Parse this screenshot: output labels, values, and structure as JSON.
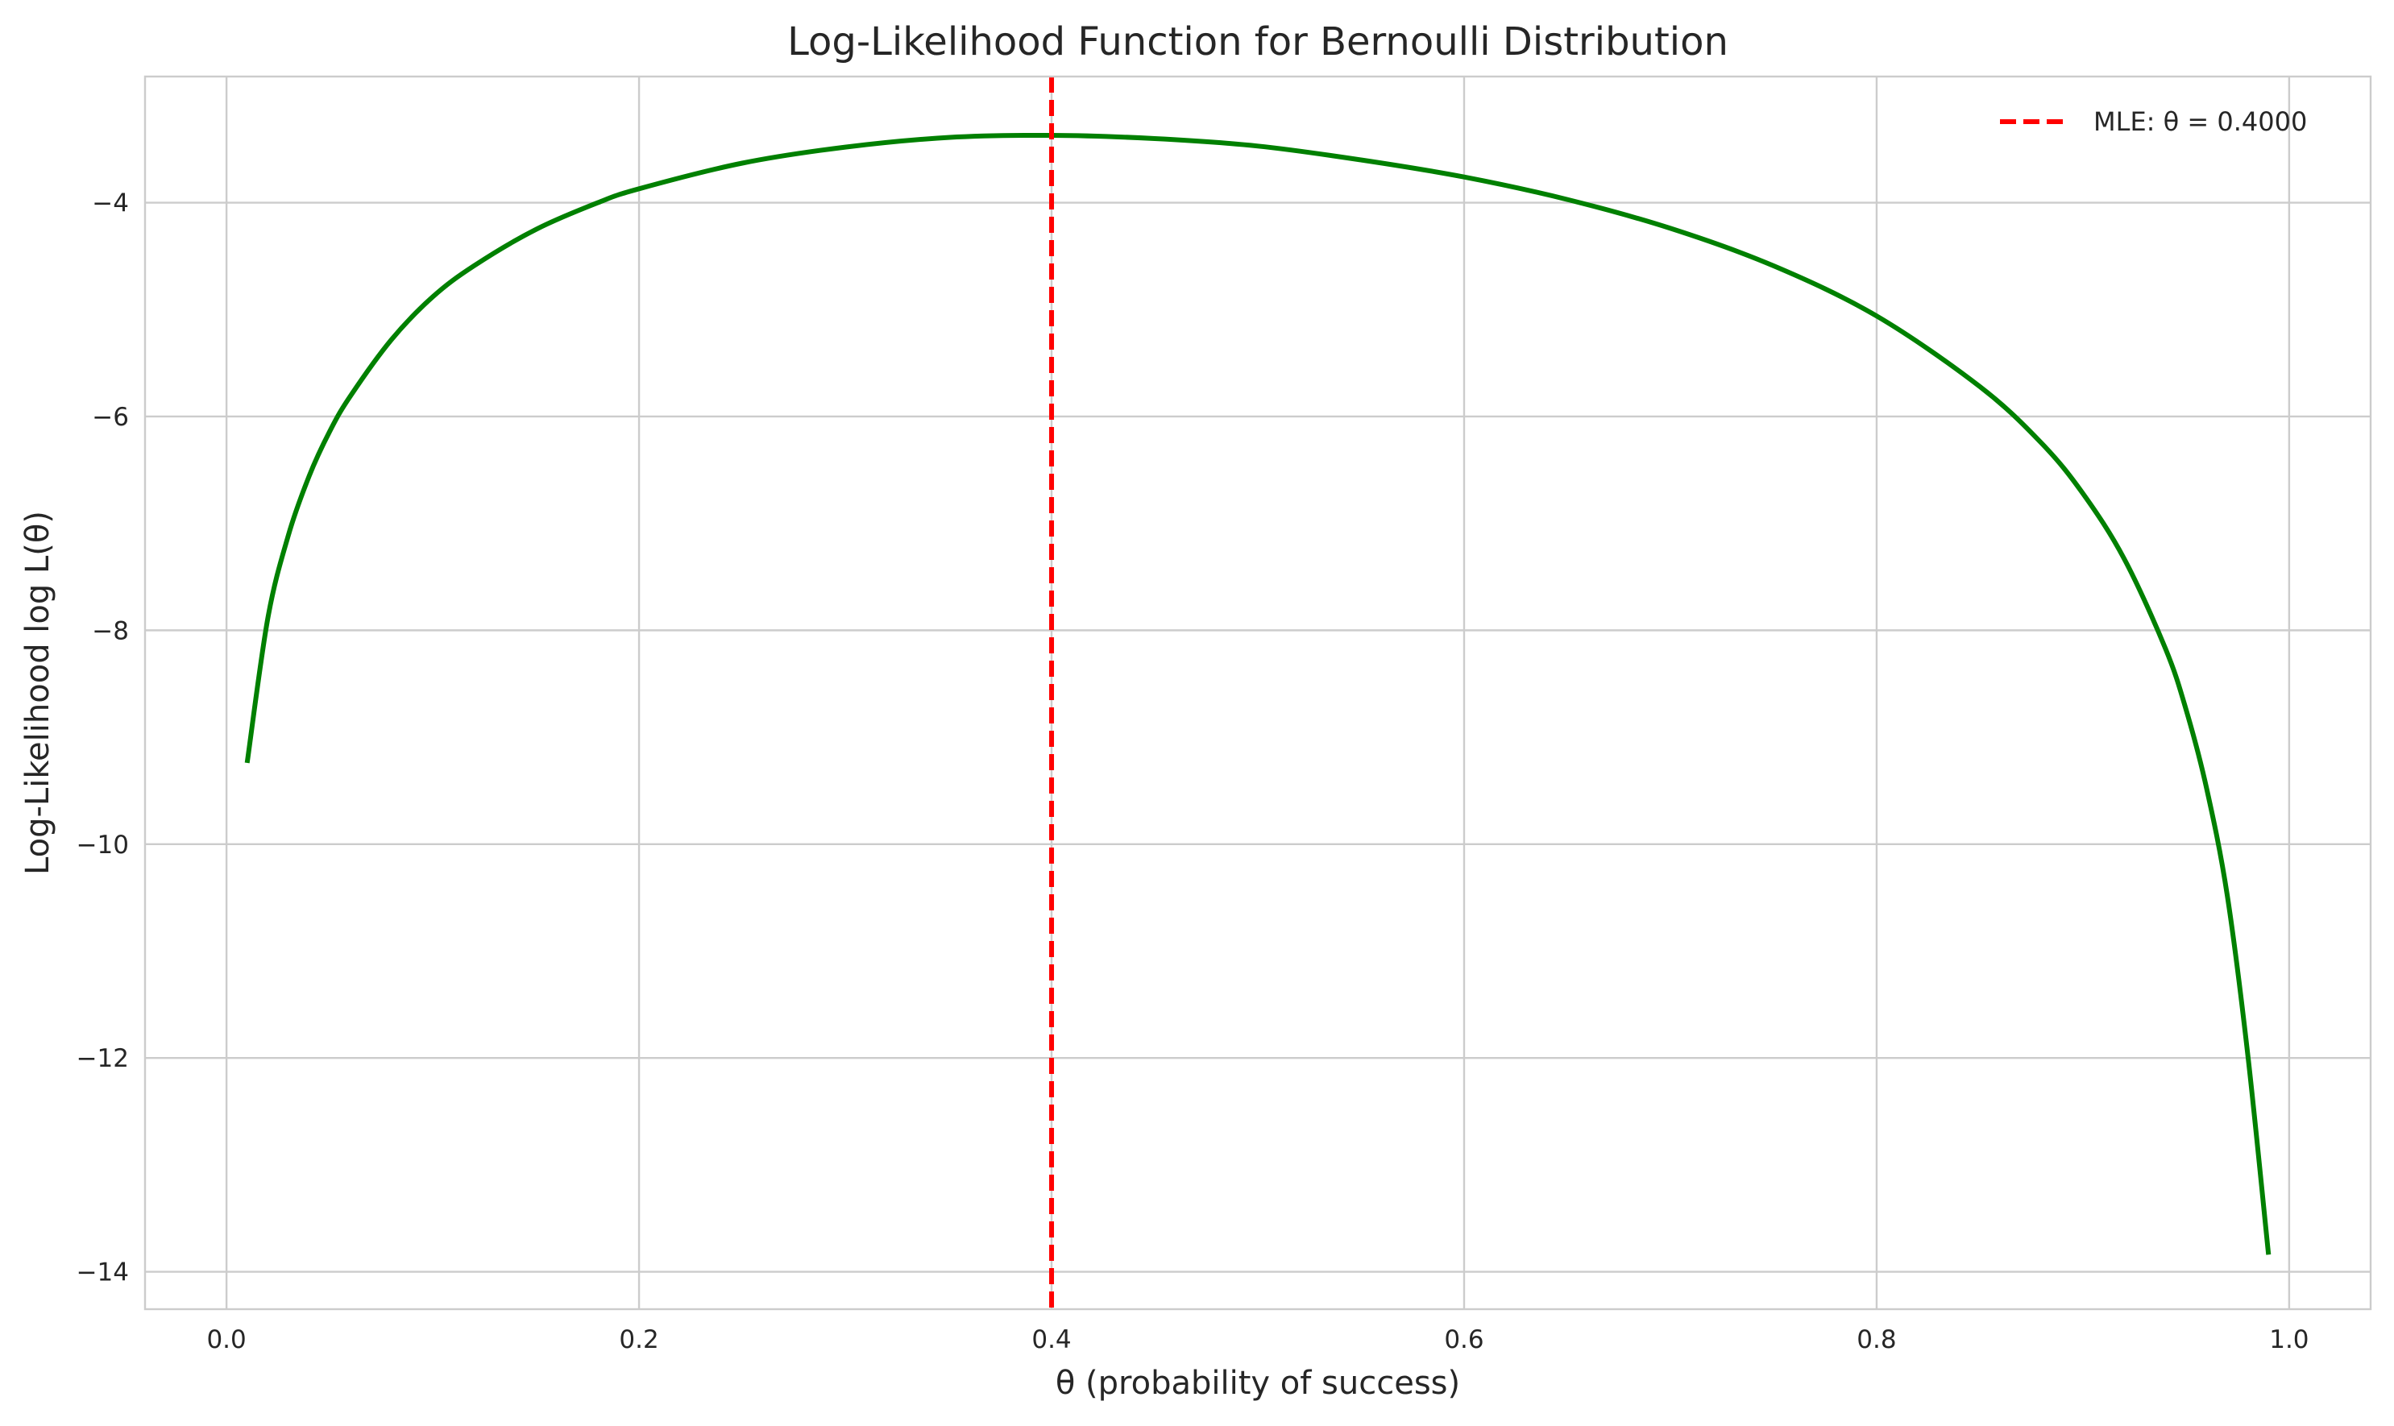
{
  "chart_data": {
    "type": "line",
    "title": "Log-Likelihood Function for Bernoulli Distribution",
    "xlabel": "θ (probability of success)",
    "ylabel": "Log-Likelihood log L(θ)",
    "xlim": [
      -0.0395,
      1.0395
    ],
    "ylim": [
      -14.35,
      -2.82
    ],
    "x_ticks": [
      0.0,
      0.2,
      0.4,
      0.6,
      0.8,
      1.0
    ],
    "x_tick_labels": [
      "0.0",
      "0.2",
      "0.4",
      "0.6",
      "0.8",
      "1.0"
    ],
    "y_ticks": [
      -14,
      -12,
      -10,
      -8,
      -6,
      -4
    ],
    "y_tick_labels": [
      "−14",
      "−12",
      "−10",
      "−8",
      "−6",
      "−4"
    ],
    "grid": true,
    "legend_position": "top-right",
    "series": [
      {
        "kind": "line",
        "color": "#008000",
        "x": [
          0.01,
          0.02,
          0.03,
          0.04,
          0.05,
          0.06,
          0.08,
          0.1,
          0.12,
          0.15,
          0.18,
          0.2,
          0.25,
          0.3,
          0.35,
          0.4,
          0.45,
          0.5,
          0.55,
          0.6,
          0.65,
          0.7,
          0.75,
          0.8,
          0.85,
          0.88,
          0.9,
          0.92,
          0.94,
          0.95,
          0.96,
          0.97,
          0.98,
          0.99
        ],
        "y": [
          -9.24,
          -7.89,
          -7.11,
          -6.56,
          -6.14,
          -5.81,
          -5.28,
          -4.88,
          -4.59,
          -4.25,
          -4.0,
          -3.87,
          -3.63,
          -3.48,
          -3.39,
          -3.37,
          -3.4,
          -3.47,
          -3.6,
          -3.76,
          -3.97,
          -4.24,
          -4.59,
          -5.06,
          -5.72,
          -6.25,
          -6.72,
          -7.33,
          -8.17,
          -8.74,
          -9.48,
          -10.48,
          -11.98,
          -13.84
        ]
      },
      {
        "kind": "vline",
        "name": "MLE: θ = 0.4000",
        "x": 0.4,
        "color": "#ff0000",
        "style": "dashed"
      }
    ]
  }
}
